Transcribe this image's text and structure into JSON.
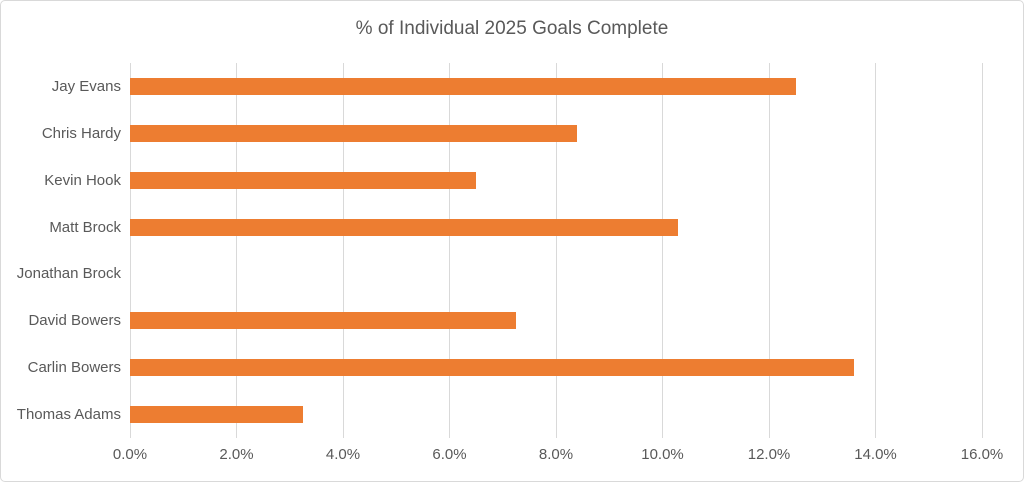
{
  "chart_data": {
    "type": "bar",
    "orientation": "horizontal",
    "title": "% of Individual 2025 Goals Complete",
    "categories": [
      "Jay Evans",
      "Chris Hardy",
      "Kevin Hook",
      "Matt Brock",
      "Jonathan Brock",
      "David Bowers",
      "Carlin Bowers",
      "Thomas Adams"
    ],
    "values": [
      12.5,
      8.4,
      6.5,
      10.3,
      0,
      7.25,
      13.6,
      3.25
    ],
    "unit": "%",
    "xlim": [
      0,
      16
    ],
    "x_ticks": [
      0,
      2,
      4,
      6,
      8,
      10,
      12,
      14,
      16
    ],
    "x_tick_labels": [
      "0.0%",
      "2.0%",
      "4.0%",
      "6.0%",
      "8.0%",
      "10.0%",
      "12.0%",
      "14.0%",
      "16.0%"
    ],
    "grid": "vertical-only",
    "legend": "none",
    "colors": {
      "bar": "#ED7D31",
      "gridline": "#D9D9D9",
      "text": "#595959",
      "frame_border": "#D9D9D9",
      "background": "#FFFFFF"
    }
  }
}
